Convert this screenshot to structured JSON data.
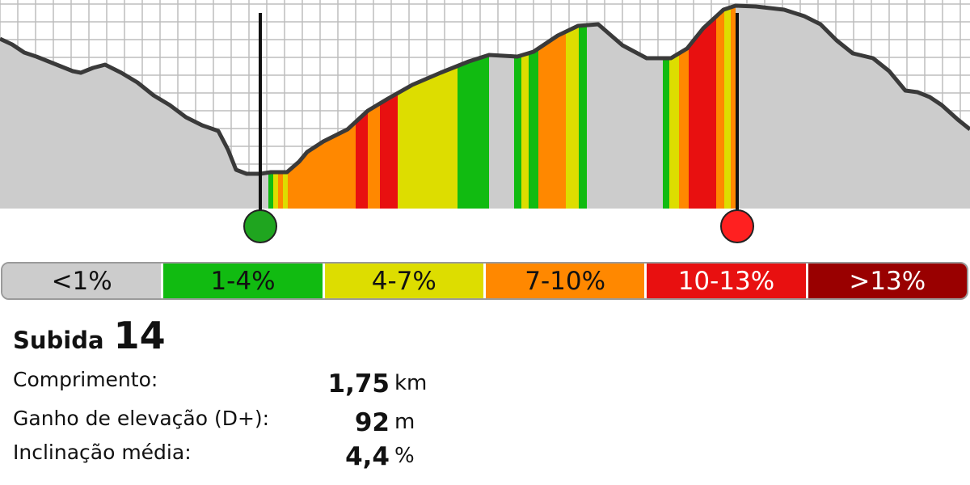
{
  "profile": {
    "start_marker_color": "#1fa51f",
    "end_marker_color": "#ff2020",
    "background_color": "#cccccc",
    "grade_colors": [
      "#cccccc",
      "#11bb11",
      "#dddd00",
      "#ff8800",
      "#e81010",
      "#990000"
    ]
  },
  "legend": {
    "items": [
      {
        "label": "<1%",
        "bg": "#cccccc",
        "fg": "#111111"
      },
      {
        "label": "1-4%",
        "bg": "#11bb11",
        "fg": "#111111"
      },
      {
        "label": "4-7%",
        "bg": "#dddd00",
        "fg": "#111111"
      },
      {
        "label": "7-10%",
        "bg": "#ff8800",
        "fg": "#111111"
      },
      {
        "label": "10-13%",
        "bg": "#e81010",
        "fg": "#ffffff"
      },
      {
        "label": ">13%",
        "bg": "#990000",
        "fg": "#ffffff"
      }
    ]
  },
  "climb": {
    "title_word": "Subida",
    "number": "14",
    "stats": [
      {
        "label": "Comprimento:",
        "value": "1,75",
        "unit": "km"
      },
      {
        "label": "Ganho de elevação (D+):",
        "value": "92",
        "unit": "m"
      },
      {
        "label": "Inclinação média:",
        "value": "4,4",
        "unit": "%"
      }
    ]
  }
}
